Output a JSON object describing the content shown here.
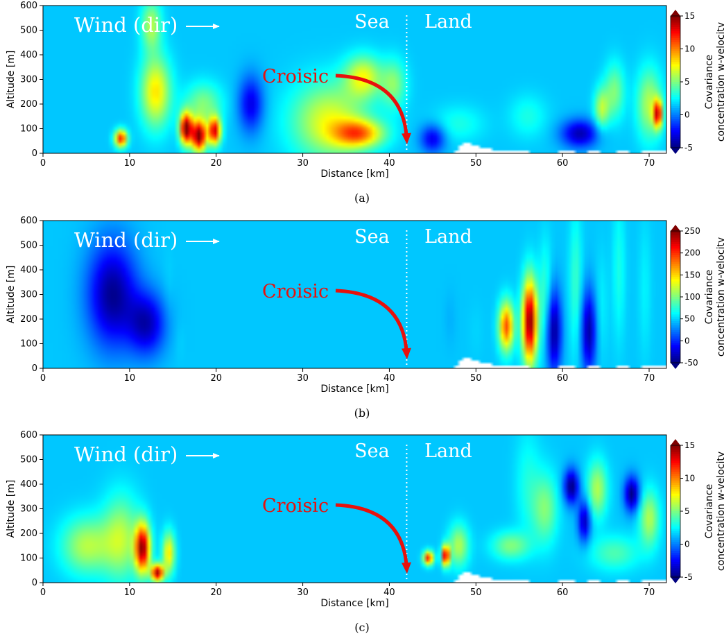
{
  "chart_data": [
    {
      "type": "heatmap",
      "caption": "(a)",
      "xlabel": "Distance [km]",
      "ylabel": "Altitude [m]",
      "xlim": [
        0,
        72
      ],
      "ylim": [
        0,
        600
      ],
      "xticks": [
        0,
        10,
        20,
        30,
        40,
        50,
        60,
        70
      ],
      "yticks": [
        0,
        100,
        200,
        300,
        400,
        500,
        600
      ],
      "colorbar": {
        "label": "Covariance\nconcentration w-velocity",
        "range": [
          -5,
          15
        ],
        "ticks": [
          -5,
          0,
          5,
          10,
          15
        ],
        "extend": "both",
        "colormap": "jet"
      },
      "annotations": {
        "wind": "Wind (dir)",
        "sea": "Sea",
        "land": "Land",
        "place": "Croisic",
        "coast_x": 42
      },
      "hotspots": [
        {
          "x": 9,
          "y": 60,
          "value": 12,
          "sx": 0.5,
          "sy": 25
        },
        {
          "x": 13,
          "y": 250,
          "value": 8,
          "sx": 1.2,
          "sy": 100
        },
        {
          "x": 12.5,
          "y": 520,
          "value": 6,
          "sx": 0.8,
          "sy": 70
        },
        {
          "x": 16.5,
          "y": 100,
          "value": 15,
          "sx": 0.5,
          "sy": 45
        },
        {
          "x": 18,
          "y": 70,
          "value": 15,
          "sx": 0.6,
          "sy": 45
        },
        {
          "x": 19.8,
          "y": 90,
          "value": 13,
          "sx": 0.5,
          "sy": 40
        },
        {
          "x": 18.5,
          "y": 200,
          "value": 5,
          "sx": 1.5,
          "sy": 60
        },
        {
          "x": 33,
          "y": 130,
          "value": 7,
          "sx": 3,
          "sy": 110
        },
        {
          "x": 37,
          "y": 310,
          "value": 7,
          "sx": 1.5,
          "sy": 60
        },
        {
          "x": 36.5,
          "y": 80,
          "value": 9,
          "sx": 2,
          "sy": 40
        },
        {
          "x": 40.5,
          "y": 280,
          "value": 5,
          "sx": 1,
          "sy": 70
        },
        {
          "x": 48,
          "y": 120,
          "value": 3,
          "sx": 2,
          "sy": 50
        },
        {
          "x": 56,
          "y": 150,
          "value": 3,
          "sx": 1.5,
          "sy": 60
        },
        {
          "x": 64.5,
          "y": 180,
          "value": 6,
          "sx": 0.6,
          "sy": 60
        },
        {
          "x": 66,
          "y": 250,
          "value": 5,
          "sx": 0.8,
          "sy": 80
        },
        {
          "x": 70,
          "y": 200,
          "value": 6,
          "sx": 1,
          "sy": 100
        },
        {
          "x": 71,
          "y": 160,
          "value": 12,
          "sx": 0.35,
          "sy": 40
        },
        {
          "x": 62,
          "y": 80,
          "value": -4,
          "sx": 1.5,
          "sy": 40
        },
        {
          "x": 45,
          "y": 60,
          "value": -3,
          "sx": 1,
          "sy": 40
        },
        {
          "x": 24,
          "y": 200,
          "value": -3,
          "sx": 1,
          "sy": 80
        }
      ]
    },
    {
      "type": "heatmap",
      "caption": "(b)",
      "xlabel": "Distance [km]",
      "ylabel": "Altitude [m]",
      "xlim": [
        0,
        72
      ],
      "ylim": [
        0,
        600
      ],
      "xticks": [
        0,
        10,
        20,
        30,
        40,
        50,
        60,
        70
      ],
      "yticks": [
        0,
        100,
        200,
        300,
        400,
        500,
        600
      ],
      "colorbar": {
        "label": "Covariance\nconcentration w-velocity",
        "range": [
          -50,
          250
        ],
        "ticks": [
          -50,
          0,
          50,
          100,
          150,
          200,
          250
        ],
        "extend": "both",
        "colormap": "jet"
      },
      "annotations": {
        "wind": "Wind (dir)",
        "sea": "Sea",
        "land": "Land",
        "place": "Croisic",
        "coast_x": 42
      },
      "hotspots": [
        {
          "x": 8,
          "y": 300,
          "value": -45,
          "sx": 2,
          "sy": 150
        },
        {
          "x": 14.5,
          "y": 330,
          "value": 50,
          "sx": 0.4,
          "sy": 110
        },
        {
          "x": 15.8,
          "y": 110,
          "value": 50,
          "sx": 0.4,
          "sy": 60
        },
        {
          "x": 12,
          "y": 180,
          "value": -30,
          "sx": 1.5,
          "sy": 90
        },
        {
          "x": 53.5,
          "y": 170,
          "value": 190,
          "sx": 0.6,
          "sy": 70
        },
        {
          "x": 56.2,
          "y": 190,
          "value": 250,
          "sx": 0.6,
          "sy": 120
        },
        {
          "x": 58,
          "y": 300,
          "value": 80,
          "sx": 0.5,
          "sy": 150
        },
        {
          "x": 61.5,
          "y": 350,
          "value": 80,
          "sx": 0.5,
          "sy": 200
        },
        {
          "x": 64.5,
          "y": 250,
          "value": 60,
          "sx": 0.5,
          "sy": 150
        },
        {
          "x": 66.5,
          "y": 400,
          "value": 70,
          "sx": 0.5,
          "sy": 200
        },
        {
          "x": 69.5,
          "y": 320,
          "value": 60,
          "sx": 0.5,
          "sy": 200
        },
        {
          "x": 50,
          "y": 150,
          "value": 50,
          "sx": 0.6,
          "sy": 80
        },
        {
          "x": 47,
          "y": 200,
          "value": 40,
          "sx": 0.5,
          "sy": 80
        },
        {
          "x": 59,
          "y": 150,
          "value": -45,
          "sx": 0.6,
          "sy": 120
        },
        {
          "x": 63,
          "y": 150,
          "value": -40,
          "sx": 0.6,
          "sy": 120
        }
      ]
    },
    {
      "type": "heatmap",
      "caption": "(c)",
      "xlabel": "Distance [km]",
      "ylabel": "Altitude [m]",
      "xlim": [
        0,
        72
      ],
      "ylim": [
        0,
        600
      ],
      "xticks": [
        0,
        10,
        20,
        30,
        40,
        50,
        60,
        70
      ],
      "yticks": [
        0,
        100,
        200,
        300,
        400,
        500,
        600
      ],
      "colorbar": {
        "label": "Covariance\nconcentration w-velocity",
        "range": [
          -5,
          15
        ],
        "ticks": [
          -5,
          0,
          5,
          10,
          15
        ],
        "extend": "both",
        "colormap": "jet"
      },
      "annotations": {
        "wind": "Wind (dir)",
        "sea": "Sea",
        "land": "Land",
        "place": "Croisic",
        "coast_x": 42
      },
      "hotspots": [
        {
          "x": 5,
          "y": 150,
          "value": 6,
          "sx": 2,
          "sy": 80
        },
        {
          "x": 9,
          "y": 180,
          "value": 6,
          "sx": 1.5,
          "sy": 120
        },
        {
          "x": 11.5,
          "y": 140,
          "value": 14,
          "sx": 0.6,
          "sy": 70
        },
        {
          "x": 13.2,
          "y": 40,
          "value": 14,
          "sx": 0.5,
          "sy": 25
        },
        {
          "x": 14.5,
          "y": 120,
          "value": 8,
          "sx": 0.5,
          "sy": 60
        },
        {
          "x": 44.5,
          "y": 100,
          "value": 12,
          "sx": 0.4,
          "sy": 20
        },
        {
          "x": 46.5,
          "y": 110,
          "value": 14,
          "sx": 0.3,
          "sy": 30
        },
        {
          "x": 48,
          "y": 150,
          "value": 6,
          "sx": 0.8,
          "sy": 60
        },
        {
          "x": 58,
          "y": 300,
          "value": 5,
          "sx": 1,
          "sy": 100
        },
        {
          "x": 61,
          "y": 390,
          "value": -5,
          "sx": 0.6,
          "sy": 50
        },
        {
          "x": 68,
          "y": 360,
          "value": -5,
          "sx": 0.6,
          "sy": 50
        },
        {
          "x": 62.5,
          "y": 250,
          "value": -4,
          "sx": 0.5,
          "sy": 60
        },
        {
          "x": 64,
          "y": 380,
          "value": 6,
          "sx": 0.8,
          "sy": 80
        },
        {
          "x": 70,
          "y": 260,
          "value": 6,
          "sx": 0.8,
          "sy": 80
        },
        {
          "x": 54,
          "y": 150,
          "value": 5,
          "sx": 1.5,
          "sy": 40
        },
        {
          "x": 66,
          "y": 120,
          "value": 4,
          "sx": 2,
          "sy": 50
        },
        {
          "x": 56,
          "y": 400,
          "value": 3,
          "sx": 1,
          "sy": 150
        }
      ]
    }
  ]
}
